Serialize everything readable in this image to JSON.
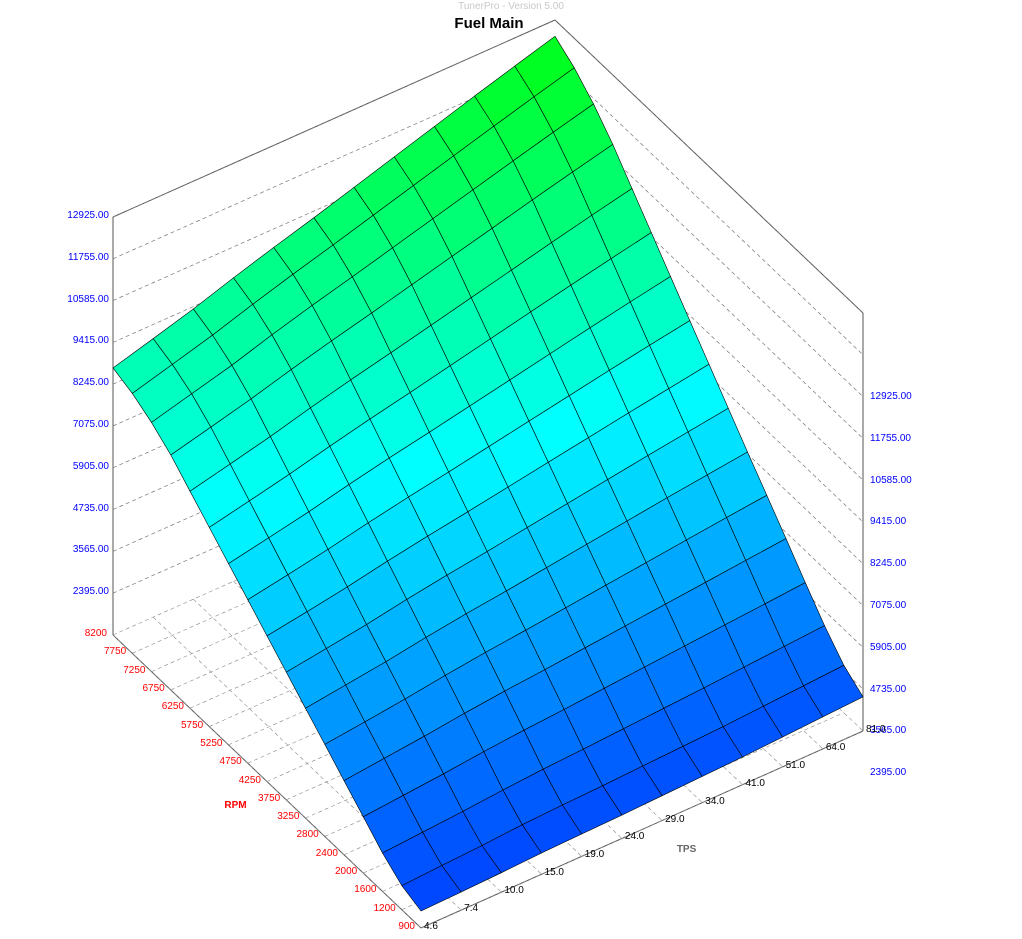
{
  "app": {
    "version_text": "TunerPro - Version 5.00"
  },
  "colors": {
    "z_axis": "#0000ff",
    "rpm_axis": "#ff0000",
    "tps_axis": "#000000",
    "tps_label": "#666666",
    "surface_low": "#0033ff",
    "surface_mid": "#00ffff",
    "surface_high": "#00ff00"
  },
  "chart_data": {
    "type": "surface3d",
    "title": "Fuel Main",
    "xlabel": "RPM",
    "ylabel": "TPS",
    "zlabel": "",
    "rpm_ticks": [
      "900",
      "1200",
      "1600",
      "2000",
      "2400",
      "2800",
      "3250",
      "3750",
      "4250",
      "4750",
      "5250",
      "5750",
      "6250",
      "6750",
      "7250",
      "7750",
      "8200"
    ],
    "tps_ticks": [
      "4.6",
      "7.4",
      "10.0",
      "15.0",
      "19.0",
      "24.0",
      "29.0",
      "34.0",
      "41.0",
      "51.0",
      "64.0",
      "81.0"
    ],
    "z_ticks_left": [
      "12925.00",
      "11755.00",
      "10585.00",
      "9415.00",
      "8245.00",
      "7075.00",
      "5905.00",
      "4735.00",
      "3565.00",
      "2395.00"
    ],
    "z_ticks_right": [
      "12925.00",
      "11755.00",
      "10585.00",
      "9415.00",
      "8245.00",
      "7075.00",
      "5905.00",
      "4735.00",
      "3565.00",
      "2395.00"
    ],
    "zlim": [
      1225,
      12925
    ],
    "grid": true,
    "surface_z": [
      [
        1700,
        1730,
        1770,
        1820,
        1850,
        1880,
        1920,
        1960,
        2000,
        2060,
        2120,
        2180
      ],
      [
        1900,
        1960,
        2020,
        2100,
        2150,
        2190,
        2240,
        2290,
        2340,
        2410,
        2480,
        2550
      ],
      [
        2300,
        2380,
        2460,
        2560,
        2640,
        2700,
        2770,
        2840,
        2910,
        2990,
        3070,
        3150
      ],
      [
        2800,
        2900,
        3000,
        3120,
        3220,
        3300,
        3390,
        3480,
        3570,
        3660,
        3750,
        3840
      ],
      [
        3300,
        3420,
        3540,
        3680,
        3800,
        3900,
        4010,
        4120,
        4230,
        4340,
        4450,
        4560
      ],
      [
        3800,
        3930,
        4070,
        4230,
        4370,
        4490,
        4620,
        4750,
        4880,
        5010,
        5140,
        5260
      ],
      [
        4300,
        4450,
        4600,
        4780,
        4940,
        5080,
        5230,
        5380,
        5530,
        5680,
        5820,
        5960
      ],
      [
        4800,
        4960,
        5130,
        5330,
        5510,
        5670,
        5840,
        6010,
        6180,
        6350,
        6510,
        6670
      ],
      [
        5300,
        5480,
        5670,
        5890,
        6090,
        6270,
        6460,
        6650,
        6840,
        7030,
        7210,
        7390
      ],
      [
        5800,
        6000,
        6210,
        6450,
        6670,
        6870,
        7080,
        7290,
        7500,
        7710,
        7910,
        8100
      ],
      [
        6300,
        6520,
        6750,
        7010,
        7250,
        7470,
        7700,
        7930,
        8160,
        8390,
        8610,
        8820
      ],
      [
        6800,
        7040,
        7290,
        7570,
        7830,
        8070,
        8320,
        8570,
        8820,
        9070,
        9310,
        9540
      ],
      [
        7300,
        7560,
        7830,
        8130,
        8410,
        8670,
        8940,
        9210,
        9480,
        9750,
        10010,
        10260
      ],
      [
        7800,
        8080,
        8370,
        8690,
        8990,
        9270,
        9560,
        9850,
        10140,
        10430,
        10710,
        10980
      ],
      [
        8200,
        8500,
        8800,
        9150,
        9470,
        9770,
        10080,
        10390,
        10700,
        11010,
        11310,
        11600
      ],
      [
        8500,
        8810,
        9130,
        9490,
        9830,
        10150,
        10480,
        10810,
        11140,
        11470,
        11790,
        12100
      ],
      [
        8700,
        9020,
        9350,
        9720,
        10070,
        10400,
        10750,
        11100,
        11450,
        11800,
        12140,
        12470
      ]
    ]
  }
}
